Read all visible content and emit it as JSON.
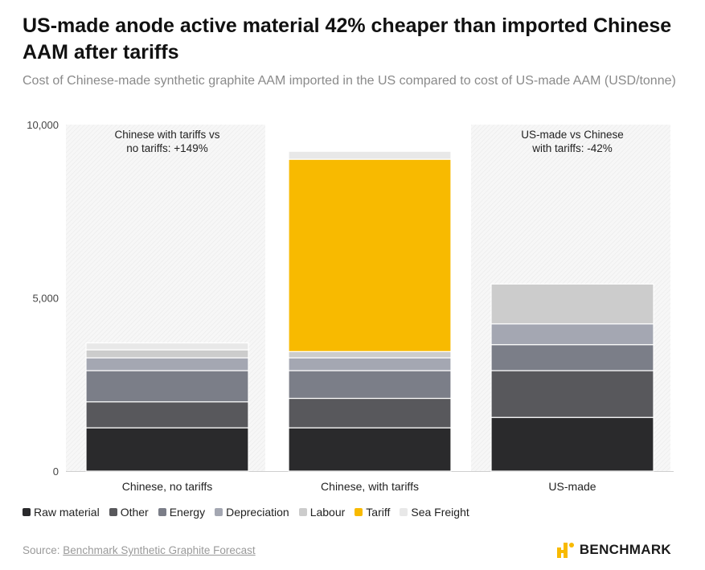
{
  "title": "US-made anode active material 42% cheaper than imported Chinese AAM after tariffs",
  "subtitle": "Cost of Chinese-made synthetic graphite AAM imported in the US compared to cost of US-made AAM (USD/tonne)",
  "chart_data": {
    "type": "bar",
    "stacked": true,
    "categories": [
      "Chinese, no tariffs",
      "Chinese, with tariffs",
      "US-made"
    ],
    "series": [
      {
        "name": "Raw material",
        "color": "#2a2a2c",
        "values": [
          1250,
          1250,
          1550
        ]
      },
      {
        "name": "Other",
        "color": "#58585c",
        "values": [
          750,
          850,
          1350
        ]
      },
      {
        "name": "Energy",
        "color": "#7b7e88",
        "values": [
          900,
          800,
          750
        ]
      },
      {
        "name": "Depreciation",
        "color": "#a4a7b2",
        "values": [
          370,
          370,
          600
        ]
      },
      {
        "name": "Labour",
        "color": "#cccccc",
        "values": [
          230,
          180,
          1150
        ]
      },
      {
        "name": "Tariff",
        "color": "#f8ba00",
        "values": [
          0,
          5550,
          0
        ]
      },
      {
        "name": "Sea Freight",
        "color": "#e8e8e8",
        "values": [
          200,
          230,
          0
        ]
      }
    ],
    "ylim": [
      0,
      10000
    ],
    "yticks": [
      0,
      5000,
      10000
    ],
    "ytick_labels": [
      "0",
      "5,000",
      "10,000"
    ],
    "xlabel": "",
    "ylabel": "",
    "grid": false,
    "annotations": [
      {
        "category_index": 0,
        "text": "Chinese with tariffs vs\nno tariffs: +149%"
      },
      {
        "category_index": 2,
        "text": "US-made vs Chinese\nwith tariffs: -42%"
      }
    ],
    "legend_position": "bottom"
  },
  "source": {
    "prefix": "Source:",
    "link_text": "Benchmark Synthetic Graphite Forecast"
  },
  "brand": {
    "name": "BENCHMARK",
    "logo_icon": "benchmark-logo-icon",
    "accent": "#f8ba00"
  }
}
